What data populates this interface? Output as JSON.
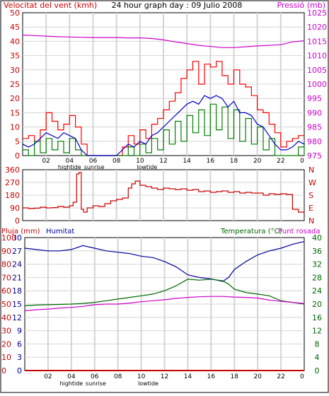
{
  "header": {
    "left": "Velocitat del vent (kmh)",
    "center": "24 hour graph day : 09 Julio 2008",
    "right": "Pressió (mb)"
  },
  "x_axis": {
    "ticks": [
      "02",
      "04",
      "06",
      "08",
      "10",
      "12",
      "14",
      "16",
      "18",
      "20",
      "22"
    ],
    "last_tick": "0",
    "annotations": [
      {
        "label": "hightide",
        "at_hour": 4
      },
      {
        "label": "sunrise",
        "at_hour": 6.1
      },
      {
        "label": "lowtide",
        "at_hour": 10.6
      }
    ]
  },
  "colors": {
    "wind_axis": "#cc0000",
    "pressure_axis": "#cc00cc",
    "gust": "#ff0000",
    "average": "#0000cc",
    "minimum": "#008000",
    "direction": "#cc0000",
    "humidity": "#000099",
    "temperature": "#006600",
    "dewpoint": "#cc00cc",
    "rain": "#cc0000",
    "grid": "#d4d4d4"
  },
  "chart_data": [
    {
      "id": "wind_pressure",
      "type": "line",
      "x_unit": "hour",
      "xlim": [
        0,
        24
      ],
      "left_axis": {
        "label": "Velocitat del vent (kmh)",
        "ticks": [
          0,
          5,
          10,
          15,
          20,
          25,
          30,
          35,
          40,
          45,
          50
        ],
        "ylim": [
          0,
          50
        ]
      },
      "right_axis": {
        "label": "Pressió (mb)",
        "ticks": [
          975,
          980,
          985,
          990,
          995,
          1000,
          1005,
          1010,
          1015,
          1020,
          1025
        ],
        "ylim": [
          975,
          1025
        ]
      },
      "series": [
        {
          "key": "gust",
          "axis": "left",
          "step": true,
          "x": [
            0,
            0.5,
            1,
            1.5,
            2,
            2.5,
            3,
            3.5,
            4,
            4.5,
            5,
            5.5,
            6,
            8,
            8.5,
            9,
            9.5,
            10,
            10.5,
            11,
            11.5,
            12,
            12.5,
            13,
            13.5,
            14,
            14.5,
            15,
            15.5,
            16,
            16.5,
            17,
            17.5,
            18,
            18.5,
            19,
            19.5,
            20,
            20.5,
            21,
            21.5,
            22,
            22.5,
            23,
            23.5,
            24
          ],
          "y": [
            6,
            7,
            5,
            9,
            15,
            12,
            9,
            11,
            14,
            10,
            4,
            0,
            0,
            0,
            3,
            7,
            4,
            9,
            6,
            11,
            13,
            16,
            19,
            22,
            27,
            30,
            33,
            25,
            32,
            31,
            33,
            28,
            25,
            30,
            25,
            24,
            21,
            16,
            15,
            11,
            8,
            3,
            5,
            6,
            7,
            7
          ]
        },
        {
          "key": "average",
          "axis": "left",
          "step": false,
          "x": [
            0,
            0.5,
            1,
            1.5,
            2,
            2.5,
            3,
            3.5,
            4,
            4.5,
            5,
            5.5,
            6,
            8,
            8.5,
            9,
            9.5,
            10,
            10.5,
            11,
            11.5,
            12,
            12.5,
            13,
            13.5,
            14,
            14.5,
            15,
            15.5,
            16,
            16.5,
            17,
            17.5,
            18,
            18.5,
            19,
            19.5,
            20,
            20.5,
            21,
            21.5,
            22,
            22.5,
            23,
            23.5,
            24
          ],
          "y": [
            4,
            3,
            4,
            6,
            8,
            7,
            6,
            8,
            7,
            6,
            2,
            0,
            0,
            0,
            2,
            4,
            3,
            5,
            4,
            7,
            8,
            10,
            12,
            14,
            16,
            18,
            19,
            18,
            21,
            20,
            21,
            20,
            17,
            19,
            15,
            15,
            14,
            11,
            10,
            7,
            4,
            2,
            2,
            3,
            5,
            4
          ]
        },
        {
          "key": "minimum",
          "axis": "left",
          "step": true,
          "x": [
            0,
            0.5,
            1,
            1.5,
            2,
            2.5,
            3,
            3.5,
            4,
            4.5,
            5,
            5.5,
            6,
            8,
            8.5,
            9,
            9.5,
            10,
            10.5,
            11,
            11.5,
            12,
            12.5,
            13,
            13.5,
            14,
            14.5,
            15,
            15.5,
            16,
            16.5,
            17,
            17.5,
            18,
            18.5,
            19,
            19.5,
            20,
            20.5,
            21,
            21.5,
            22,
            22.5,
            23,
            23.5,
            24
          ],
          "y": [
            2,
            0,
            5,
            1,
            6,
            2,
            5,
            1,
            6,
            2,
            0,
            0,
            0,
            0,
            0,
            3,
            0,
            4,
            1,
            6,
            2,
            9,
            4,
            12,
            5,
            14,
            8,
            16,
            7,
            18,
            9,
            17,
            6,
            16,
            5,
            13,
            4,
            10,
            2,
            6,
            0,
            0,
            0,
            0,
            3,
            0
          ]
        },
        {
          "key": "pressure",
          "axis": "right",
          "step": false,
          "x": [
            0,
            1,
            2,
            3,
            4,
            5,
            6,
            7,
            8,
            9,
            10,
            11,
            12,
            13,
            14,
            15,
            16,
            17,
            18,
            19,
            20,
            21,
            22,
            23,
            24
          ],
          "y": [
            1017.2,
            1017.0,
            1016.8,
            1016.6,
            1016.5,
            1016.4,
            1016.3,
            1016.3,
            1016.3,
            1016.2,
            1016.2,
            1016.0,
            1015.5,
            1014.8,
            1014.2,
            1013.6,
            1013.2,
            1012.8,
            1012.8,
            1013.1,
            1013.4,
            1013.6,
            1013.8,
            1014.8,
            1015.2
          ]
        }
      ]
    },
    {
      "id": "wind_direction",
      "type": "line",
      "x_unit": "hour",
      "xlim": [
        0,
        24
      ],
      "left_axis": {
        "ticks": [
          0,
          90,
          180,
          270,
          360
        ],
        "ylim": [
          0,
          360
        ]
      },
      "right_axis": {
        "ticks": [
          "N",
          "E",
          "S",
          "W",
          "N"
        ]
      },
      "series": [
        {
          "key": "direction",
          "axis": "left",
          "step": true,
          "x": [
            0,
            0.5,
            1,
            1.5,
            2,
            2.5,
            3,
            3.5,
            4,
            4.3,
            4.6,
            4.8,
            5,
            5.2,
            5.5,
            6,
            6.5,
            7,
            7.5,
            8,
            8.5,
            9,
            9.3,
            9.6,
            10,
            10.5,
            11,
            11.5,
            12,
            12.5,
            13,
            13.5,
            14,
            14.5,
            15,
            15.5,
            16,
            16.5,
            17,
            17.5,
            18,
            18.5,
            19,
            19.5,
            20,
            20.5,
            21,
            21.5,
            22,
            22.5,
            23,
            23.5,
            24
          ],
          "y": [
            90,
            85,
            88,
            95,
            90,
            92,
            100,
            95,
            105,
            130,
            330,
            340,
            80,
            60,
            90,
            105,
            100,
            120,
            140,
            150,
            160,
            230,
            260,
            280,
            250,
            240,
            230,
            220,
            230,
            225,
            220,
            225,
            215,
            220,
            205,
            210,
            200,
            205,
            210,
            200,
            205,
            195,
            200,
            195,
            195,
            180,
            190,
            185,
            190,
            185,
            80,
            60,
            55
          ]
        }
      ]
    },
    {
      "id": "humidity_temperature",
      "type": "line",
      "x_unit": "hour",
      "xlim": [
        0,
        24
      ],
      "left_axis": {
        "label": "Pluja (mm)",
        "ticks": [
          0,
          3,
          6,
          9,
          12,
          15,
          18,
          21,
          24,
          27,
          30
        ],
        "ylim": [
          0,
          30
        ]
      },
      "left_axis_2": {
        "label": "Humitat",
        "ticks": [
          0,
          10,
          20,
          30,
          40,
          50,
          60,
          70,
          80,
          90,
          100
        ],
        "ylim": [
          0,
          100
        ]
      },
      "right_axis": {
        "label": "Temperatura (°C)",
        "ticks": [
          0,
          4,
          8,
          12,
          16,
          20,
          24,
          28,
          32,
          36,
          40
        ],
        "ylim": [
          0,
          40
        ]
      },
      "right_label_2": "Punt rosada",
      "series": [
        {
          "key": "humidity",
          "axis": "left2",
          "step": false,
          "x": [
            0,
            1,
            2,
            3,
            4,
            5,
            6,
            7,
            8,
            9,
            10,
            11,
            12,
            13,
            14,
            15,
            16,
            17,
            17.5,
            18,
            19,
            20,
            21,
            22,
            23,
            24
          ],
          "y": [
            92,
            91,
            90,
            90,
            91,
            94,
            92,
            90,
            89,
            88,
            86,
            85,
            82,
            78,
            72,
            70,
            69,
            67,
            70,
            76,
            82,
            87,
            90,
            92,
            95,
            97
          ]
        },
        {
          "key": "temperature",
          "axis": "right",
          "step": false,
          "x": [
            0,
            1,
            2,
            3,
            4,
            5,
            6,
            7,
            8,
            9,
            10,
            11,
            12,
            13,
            14,
            15,
            16,
            17,
            17.5,
            18,
            19,
            20,
            21,
            22,
            23,
            24
          ],
          "y": [
            19.5,
            19.7,
            19.8,
            19.9,
            20.0,
            20.2,
            20.5,
            21.0,
            21.5,
            22.0,
            22.5,
            23.0,
            24.0,
            25.5,
            27.5,
            27.2,
            27.5,
            27.0,
            26.0,
            24.5,
            23.5,
            23.0,
            22.5,
            21.0,
            20.5,
            20.0
          ]
        },
        {
          "key": "dewpoint",
          "axis": "right",
          "step": false,
          "x": [
            0,
            1,
            2,
            3,
            4,
            5,
            6,
            7,
            8,
            9,
            10,
            11,
            12,
            13,
            14,
            15,
            16,
            17,
            18,
            19,
            20,
            21,
            22,
            23,
            24
          ],
          "y": [
            18.0,
            18.3,
            18.5,
            18.8,
            19.0,
            19.3,
            19.8,
            20.0,
            20.0,
            20.3,
            20.7,
            21.0,
            21.3,
            21.7,
            22.0,
            22.2,
            22.3,
            22.3,
            22.1,
            22.0,
            21.8,
            21.2,
            20.8,
            20.5,
            20.2
          ]
        },
        {
          "key": "rain",
          "axis": "left",
          "step": false,
          "x": [
            0,
            24
          ],
          "y": [
            0,
            0
          ]
        }
      ]
    }
  ]
}
